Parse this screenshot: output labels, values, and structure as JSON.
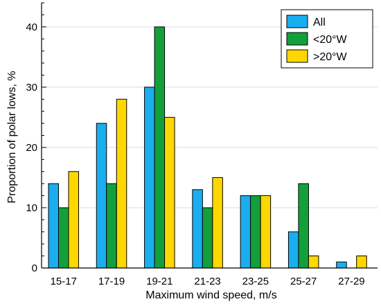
{
  "chart_data": {
    "type": "bar",
    "xlabel": "Maximum wind speed, m/s",
    "ylabel": "Proportion of polar lows, %",
    "categories": [
      "15-17",
      "17-19",
      "19-21",
      "21-23",
      "23-25",
      "25-27",
      "27-29"
    ],
    "series": [
      {
        "name": "All",
        "color": "#1aaef0",
        "values": [
          14,
          24,
          30,
          13,
          12,
          6,
          1
        ]
      },
      {
        "name": "<20°W",
        "color": "#13a03b",
        "values": [
          10,
          14,
          40,
          10,
          12,
          14,
          0
        ]
      },
      {
        "name": ">20°W",
        "color": "#ffd700",
        "values": [
          16,
          28,
          25,
          15,
          12,
          2,
          2
        ]
      }
    ],
    "ylim": [
      0,
      44
    ],
    "yticks": [
      0,
      10,
      20,
      30,
      40
    ],
    "grid": "horizontal",
    "legend_position": "top-right"
  }
}
